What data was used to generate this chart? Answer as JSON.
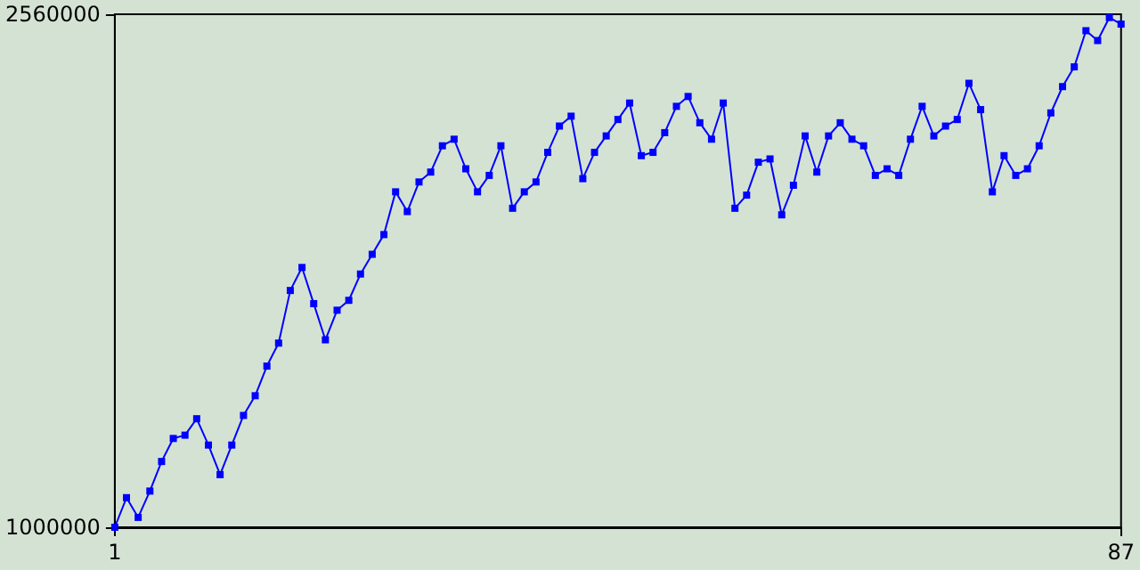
{
  "chart_data": {
    "type": "line",
    "x": [
      1,
      2,
      3,
      4,
      5,
      6,
      7,
      8,
      9,
      10,
      11,
      12,
      13,
      14,
      15,
      16,
      17,
      18,
      19,
      20,
      21,
      22,
      23,
      24,
      25,
      26,
      27,
      28,
      29,
      30,
      31,
      32,
      33,
      34,
      35,
      36,
      37,
      38,
      39,
      40,
      41,
      42,
      43,
      44,
      45,
      46,
      47,
      48,
      49,
      50,
      51,
      52,
      53,
      54,
      55,
      56,
      57,
      58,
      59,
      60,
      61,
      62,
      63,
      64,
      65,
      66,
      67,
      68,
      69,
      70,
      71,
      72,
      73,
      74,
      75,
      76,
      77,
      78,
      79,
      80,
      81,
      82,
      83,
      84,
      85,
      86,
      87
    ],
    "series": [
      {
        "color": "#0000ff",
        "values": [
          1000000,
          1090000,
          1030000,
          1110000,
          1200000,
          1270000,
          1280000,
          1330000,
          1250000,
          1160000,
          1250000,
          1340000,
          1400000,
          1490000,
          1560000,
          1720000,
          1790000,
          1680000,
          1570000,
          1660000,
          1690000,
          1770000,
          1830000,
          1890000,
          2020000,
          1960000,
          2050000,
          2080000,
          2160000,
          2180000,
          2090000,
          2020000,
          2070000,
          2160000,
          1970000,
          2020000,
          2050000,
          2140000,
          2220000,
          2250000,
          2060000,
          2140000,
          2190000,
          2240000,
          2290000,
          2130000,
          2140000,
          2200000,
          2280000,
          2310000,
          2230000,
          2180000,
          2290000,
          1970000,
          2010000,
          2110000,
          2120000,
          1950000,
          2040000,
          2190000,
          2080000,
          2190000,
          2230000,
          2180000,
          2160000,
          2070000,
          2090000,
          2070000,
          2180000,
          2280000,
          2190000,
          2220000,
          2240000,
          2350000,
          2270000,
          2020000,
          2130000,
          2070000,
          2090000,
          2160000,
          2260000,
          2340000,
          2400000,
          2510000,
          2480000,
          2550000,
          2530000
        ]
      }
    ],
    "xlim": [
      1,
      87
    ],
    "xticks": [
      1,
      87
    ],
    "ylim": [
      1000000,
      2560000
    ],
    "yticks": [
      1000000,
      2560000
    ],
    "grid": false,
    "marker": "square",
    "line_style": "solid"
  }
}
